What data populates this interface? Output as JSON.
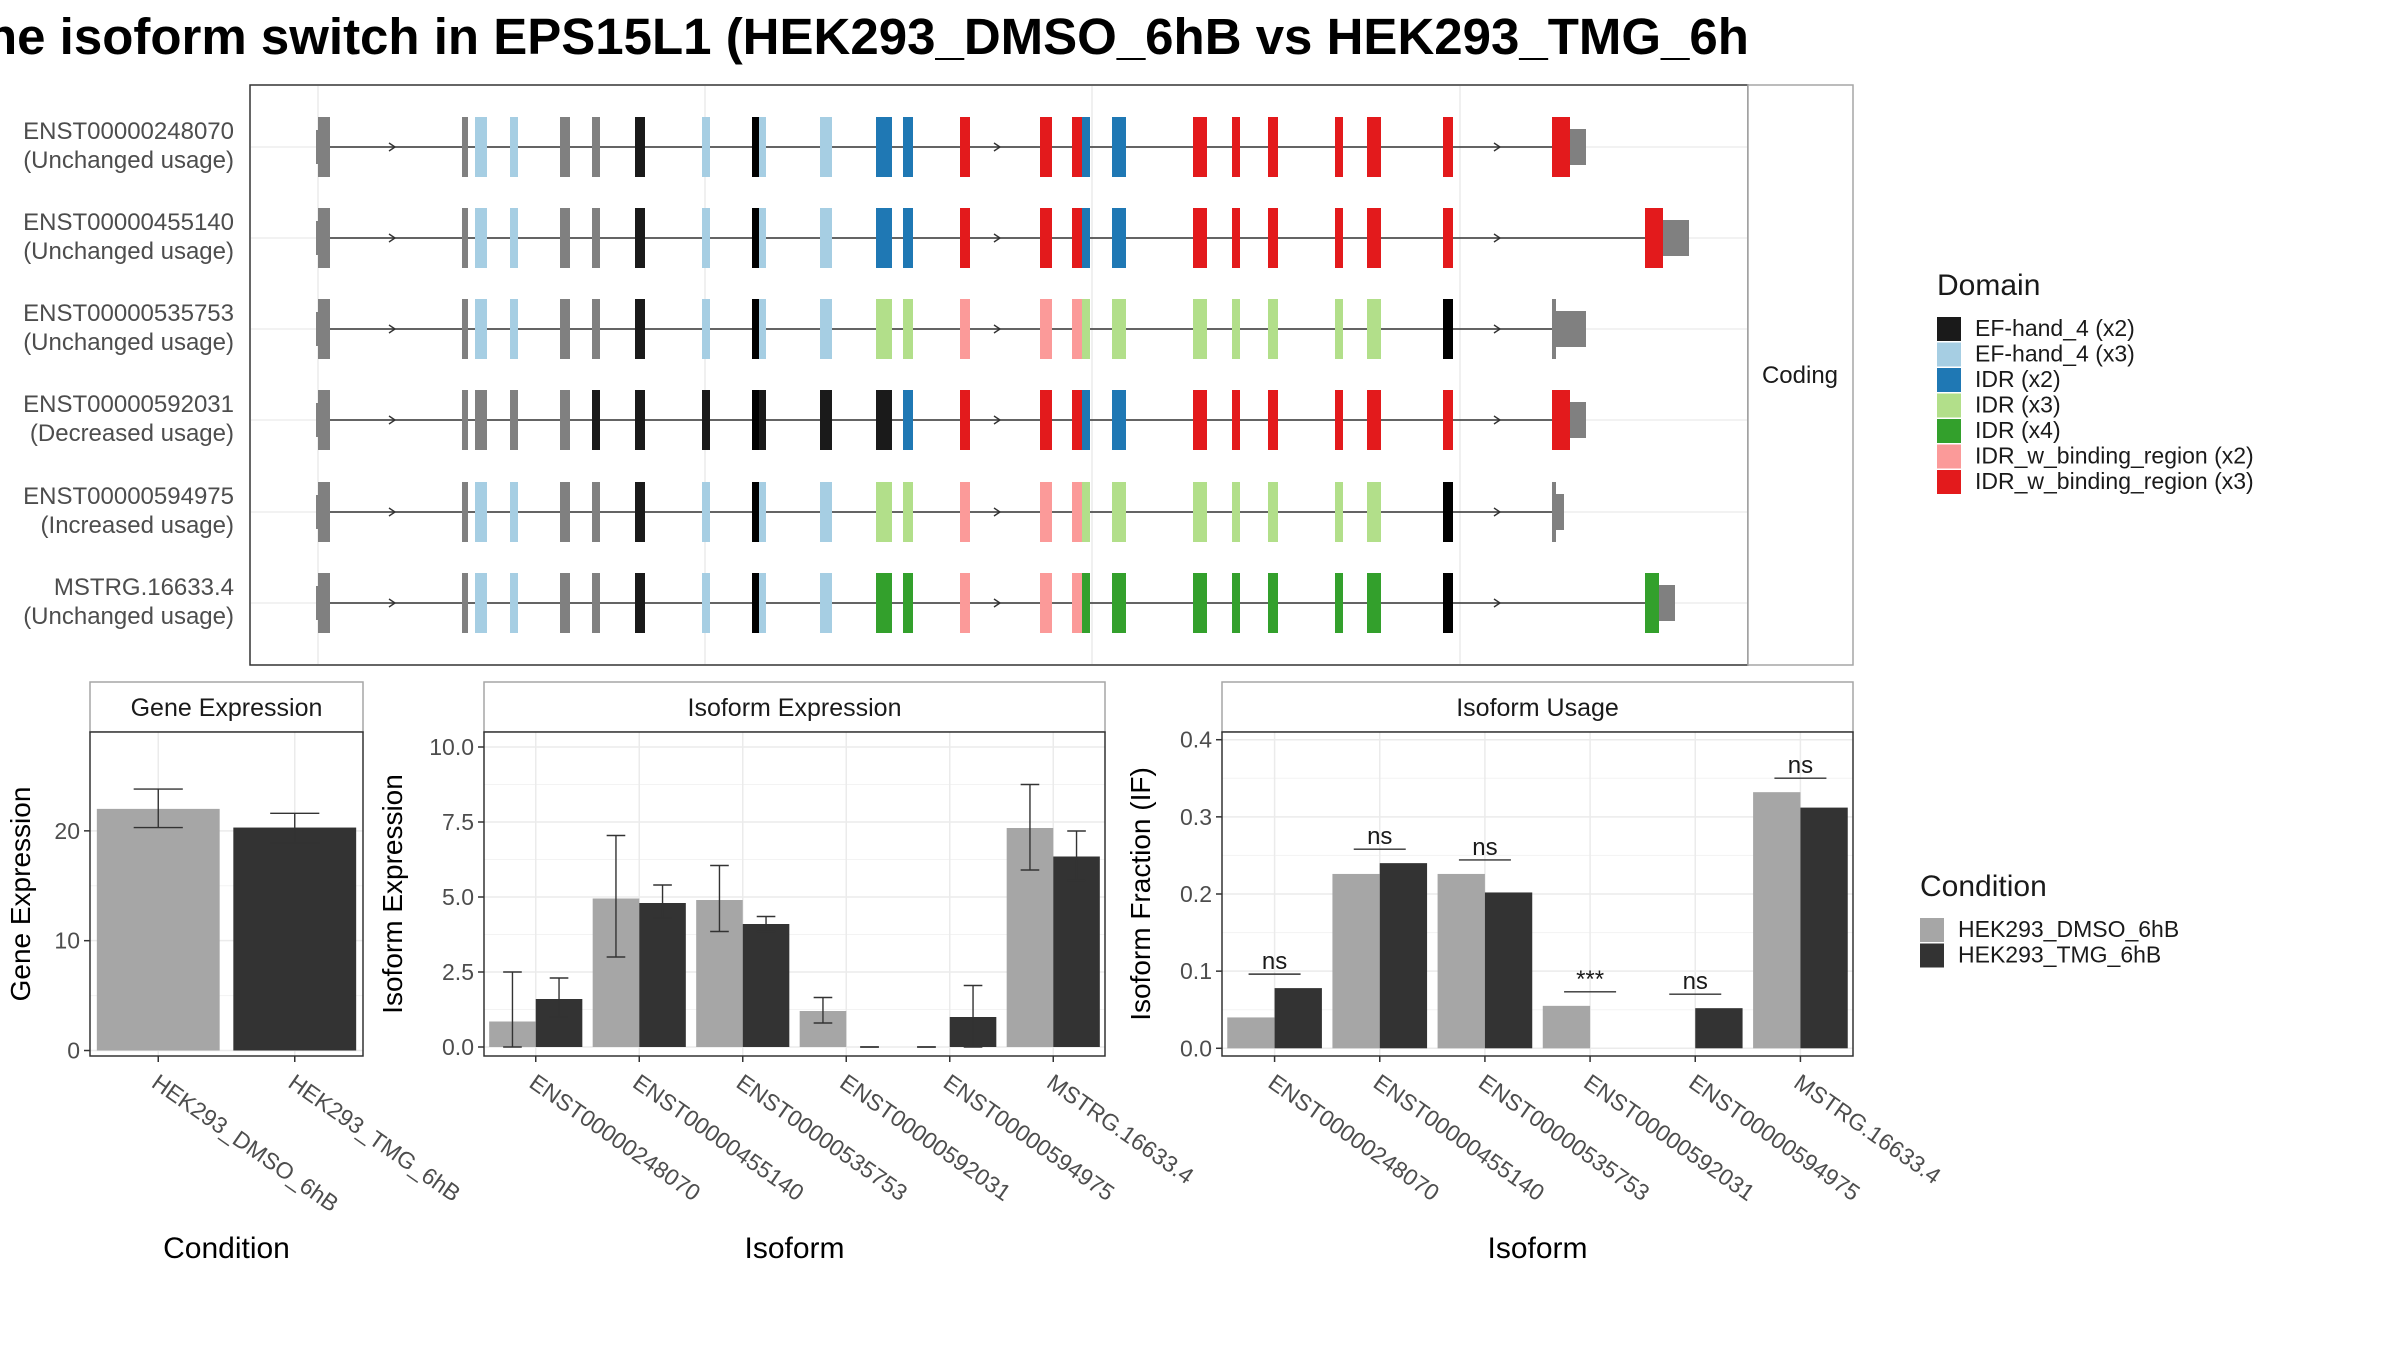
{
  "title": "ne isoform switch in EPS15L1 (HEK293_DMSO_6hB vs HEK293_TMG_6h",
  "colors": {
    "dmso": "#a6a6a6",
    "tmg": "#333333",
    "utr": "#808080",
    "intron": "#333333",
    "grid": "#ebebeb",
    "panel_border": "#333333",
    "strip_border": "#a6a6a6"
  },
  "isoforms": [
    {
      "id": "ENST00000248070",
      "usage": "(Unchanged usage)"
    },
    {
      "id": "ENST00000455140",
      "usage": "(Unchanged usage)"
    },
    {
      "id": "ENST00000535753",
      "usage": "(Unchanged usage)"
    },
    {
      "id": "ENST00000592031",
      "usage": "(Decreased usage)"
    },
    {
      "id": "ENST00000594975",
      "usage": "(Increased usage)"
    },
    {
      "id": "MSTRG.16633.4",
      "usage": "(Unchanged usage)"
    }
  ],
  "structure_strip": "Coding",
  "domain_legend": {
    "title": "Domain",
    "items": [
      {
        "label": "EF-hand_4 (x2)",
        "color": "#1a1a1a"
      },
      {
        "label": "EF-hand_4 (x3)",
        "color": "#a6cee3"
      },
      {
        "label": "IDR (x2)",
        "color": "#1f78b4"
      },
      {
        "label": "IDR (x3)",
        "color": "#b2df8a"
      },
      {
        "label": "IDR (x4)",
        "color": "#33a02c"
      },
      {
        "label": "IDR_w_binding_region (x2)",
        "color": "#fb9a99"
      },
      {
        "label": "IDR_w_binding_region (x3)",
        "color": "#e31a1c"
      }
    ]
  },
  "condition_legend": {
    "title": "Condition",
    "items": [
      {
        "label": "HEK293_DMSO_6hB",
        "color": "#a6a6a6"
      },
      {
        "label": "HEK293_TMG_6hB",
        "color": "#333333"
      }
    ]
  },
  "chart_data": [
    {
      "type": "bar",
      "title": "Gene Expression",
      "xlabel": "Condition",
      "ylabel": "Gene Expression",
      "categories": [
        "HEK293_DMSO_6hB",
        "HEK293_TMG_6hB"
      ],
      "values": [
        22.0,
        20.3
      ],
      "error": [
        [
          20.3,
          23.8
        ],
        [
          18.9,
          21.6
        ]
      ],
      "colors": [
        "#a6a6a6",
        "#333333"
      ],
      "ylim": [
        -0.5,
        29
      ],
      "yticks": [
        0,
        10,
        20
      ],
      "grid": true
    },
    {
      "type": "bar",
      "title": "Isoform Expression",
      "xlabel": "Isoform",
      "ylabel": "Isoform Expression",
      "categories": [
        "ENST00000248070",
        "ENST00000455140",
        "ENST00000535753",
        "ENST00000592031",
        "ENST00000594975",
        "MSTRG.16633.4"
      ],
      "series": [
        {
          "name": "HEK293_DMSO_6hB",
          "values": [
            0.85,
            4.95,
            4.9,
            1.2,
            0.0,
            7.3
          ],
          "error": [
            [
              0.0,
              2.5
            ],
            [
              3.0,
              7.05
            ],
            [
              3.85,
              6.05
            ],
            [
              0.8,
              1.65
            ],
            [
              0.0,
              0.0
            ],
            [
              5.9,
              8.75
            ]
          ]
        },
        {
          "name": "HEK293_TMG_6hB",
          "values": [
            1.6,
            4.8,
            4.1,
            0.0,
            1.0,
            6.35
          ],
          "error": [
            [
              1.0,
              2.3
            ],
            [
              4.3,
              5.4
            ],
            [
              3.85,
              4.35
            ],
            [
              0.0,
              0.0
            ],
            [
              0.0,
              2.05
            ],
            [
              5.55,
              7.2
            ]
          ]
        }
      ],
      "ylim": [
        -0.3,
        10.5
      ],
      "yticks": [
        "0.0",
        "2.5",
        "5.0",
        "7.5",
        "10.0"
      ],
      "grid": true
    },
    {
      "type": "bar",
      "title": "Isoform Usage",
      "xlabel": "Isoform",
      "ylabel": "Isoform Fraction (IF)",
      "categories": [
        "ENST00000248070",
        "ENST00000455140",
        "ENST00000535753",
        "ENST00000592031",
        "ENST00000594975",
        "MSTRG.16633.4"
      ],
      "series": [
        {
          "name": "HEK293_DMSO_6hB",
          "values": [
            0.04,
            0.226,
            0.226,
            0.055,
            0.0,
            0.332
          ]
        },
        {
          "name": "HEK293_TMG_6hB",
          "values": [
            0.078,
            0.24,
            0.202,
            0.0,
            0.052,
            0.312
          ]
        }
      ],
      "significance": [
        "ns",
        "ns",
        "ns",
        "***",
        "ns",
        "ns"
      ],
      "ylim": [
        -0.01,
        0.41
      ],
      "yticks": [
        "0.0",
        "0.1",
        "0.2",
        "0.3",
        "0.4"
      ],
      "grid": true
    }
  ]
}
